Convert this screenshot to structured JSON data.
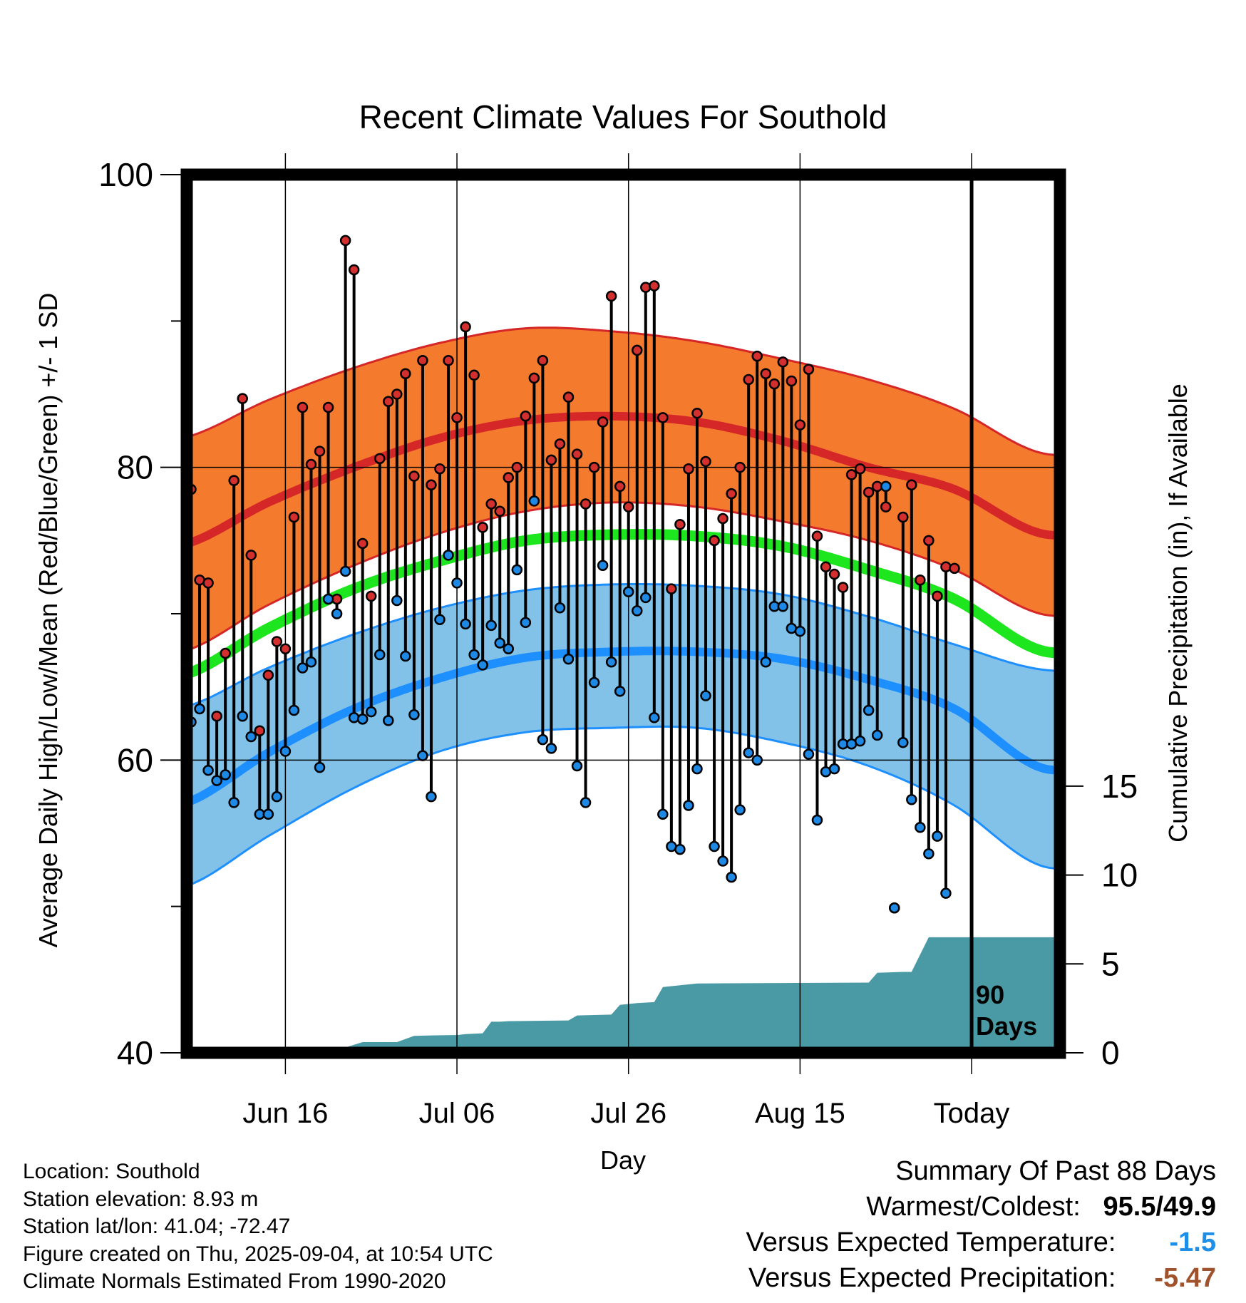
{
  "chart_data": {
    "type": "line",
    "title": "Recent Climate Values For Southold",
    "xlabel": "Day",
    "ylabel_left": "Average Daily High/Low/Mean (Red/Blue/Green) +/- 1 SD",
    "ylabel_right": "Cumulative Precipitation (in), If Available",
    "x_tick_labels": [
      "Jun 16",
      "Jul 06",
      "Jul 26",
      "Aug 15",
      "Today"
    ],
    "x_tick_days": [
      12,
      32,
      52,
      72,
      92
    ],
    "y_left_ticks": [
      40,
      60,
      80,
      100
    ],
    "ylim_left": [
      40,
      100
    ],
    "y_right_ticks": [
      0,
      5,
      10,
      15
    ],
    "ylim_right": [
      0,
      49.4
    ],
    "xlim": [
      0.5,
      102.3
    ],
    "days_label": [
      "90",
      "Days"
    ],
    "normals": {
      "days": [
        0,
        10,
        20,
        30,
        40,
        50,
        60,
        70,
        80,
        90,
        100
      ],
      "high_mean": [
        74.7,
        77.6,
        80.0,
        82.0,
        83.2,
        83.5,
        83.1,
        81.8,
        80.0,
        78.5,
        75.5
      ],
      "high_upper": [
        82.0,
        84.6,
        86.8,
        88.5,
        89.5,
        89.3,
        88.6,
        87.4,
        86.0,
        84.0,
        81.0
      ],
      "high_lower": [
        67.4,
        70.6,
        73.3,
        75.5,
        77.0,
        77.6,
        77.3,
        76.3,
        75.0,
        73.0,
        70.0
      ],
      "mean": [
        65.8,
        69.0,
        71.7,
        73.6,
        75.0,
        75.4,
        75.3,
        74.6,
        73.0,
        71.0,
        67.5
      ],
      "low_mean": [
        57.0,
        60.5,
        63.5,
        65.6,
        67.0,
        67.4,
        67.4,
        66.9,
        65.5,
        63.5,
        59.5
      ],
      "low_upper": [
        63.6,
        66.3,
        68.6,
        70.4,
        71.6,
        72.0,
        71.9,
        71.3,
        69.8,
        67.9,
        66.2
      ],
      "low_lower": [
        51.3,
        54.8,
        58.1,
        60.6,
        61.9,
        62.2,
        62.2,
        61.2,
        59.6,
        56.9,
        52.8
      ]
    },
    "series": [
      {
        "name": "High",
        "color": "#d32f2f",
        "x": [
          1,
          2,
          3,
          4,
          5,
          6,
          7,
          8,
          9,
          10,
          11,
          12,
          13,
          14,
          15,
          16,
          17,
          18,
          19,
          20,
          21,
          22,
          23,
          24,
          25,
          26,
          27,
          28,
          29,
          30,
          31,
          32,
          33,
          34,
          35,
          36,
          37,
          38,
          39,
          40,
          41,
          42,
          43,
          44,
          45,
          46,
          47,
          48,
          49,
          50,
          51,
          52,
          53,
          54,
          55,
          56,
          57,
          58,
          59,
          60,
          61,
          62,
          63,
          64,
          65,
          66,
          67,
          68,
          69,
          70,
          71,
          72,
          73,
          74,
          75,
          76,
          77,
          78,
          79,
          80,
          81,
          82,
          83,
          84,
          85,
          86,
          87,
          88,
          89,
          90,
          91
        ],
        "values": [
          78.5,
          72.3,
          72.1,
          63.0,
          67.3,
          79.1,
          84.7,
          74.0,
          62.0,
          65.8,
          68.1,
          67.6,
          76.6,
          84.1,
          80.2,
          81.1,
          84.1,
          71.0,
          95.5,
          93.5,
          74.8,
          71.2,
          80.6,
          84.5,
          85.0,
          86.4,
          79.4,
          87.3,
          78.8,
          79.9,
          87.3,
          83.4,
          89.6,
          86.3,
          75.9,
          77.5,
          77.0,
          79.3,
          80.0,
          83.5,
          86.1,
          87.3,
          80.5,
          81.6,
          84.8,
          80.9,
          77.5,
          80.0,
          83.1,
          91.7,
          78.7,
          77.3,
          88.0,
          92.3,
          92.4,
          83.4,
          71.7,
          76.1,
          79.9,
          83.7,
          80.4,
          75.0,
          76.5,
          78.2,
          80.0,
          86.0,
          87.6,
          86.4,
          85.7,
          87.2,
          85.9,
          82.9,
          86.7,
          75.3,
          73.2,
          72.7,
          71.8,
          79.5,
          79.9,
          78.3,
          78.7,
          77.3,
          49.9,
          76.6,
          78.8,
          72.3,
          75.0,
          71.2,
          73.2,
          73.1,
          null
        ]
      },
      {
        "name": "Low",
        "color": "#1e88e5",
        "x": [
          1,
          2,
          3,
          4,
          5,
          6,
          7,
          8,
          9,
          10,
          11,
          12,
          13,
          14,
          15,
          16,
          17,
          18,
          19,
          20,
          21,
          22,
          23,
          24,
          25,
          26,
          27,
          28,
          29,
          30,
          31,
          32,
          33,
          34,
          35,
          36,
          37,
          38,
          39,
          40,
          41,
          42,
          43,
          44,
          45,
          46,
          47,
          48,
          49,
          50,
          51,
          52,
          53,
          54,
          55,
          56,
          57,
          58,
          59,
          60,
          61,
          62,
          63,
          64,
          65,
          66,
          67,
          68,
          69,
          70,
          71,
          72,
          73,
          74,
          75,
          76,
          77,
          78,
          79,
          80,
          81,
          82,
          83,
          84,
          85,
          86,
          87,
          88,
          89,
          90,
          91
        ],
        "values": [
          62.6,
          63.5,
          59.3,
          58.6,
          59.0,
          57.1,
          63.0,
          61.6,
          56.3,
          56.3,
          57.5,
          60.6,
          63.4,
          66.3,
          66.7,
          59.5,
          71.0,
          70.0,
          72.9,
          62.9,
          62.8,
          63.3,
          67.2,
          62.7,
          70.9,
          67.1,
          63.1,
          60.3,
          57.5,
          69.6,
          74.0,
          72.1,
          69.3,
          67.2,
          66.5,
          69.2,
          68.0,
          67.6,
          73.0,
          69.4,
          77.7,
          61.4,
          60.8,
          70.4,
          66.9,
          59.6,
          57.1,
          65.3,
          73.3,
          66.7,
          64.7,
          71.5,
          70.2,
          71.1,
          62.9,
          56.3,
          54.1,
          53.9,
          56.9,
          59.4,
          64.4,
          54.1,
          53.1,
          52.0,
          56.6,
          60.5,
          60.0,
          66.7,
          70.5,
          70.5,
          69.0,
          68.8,
          60.4,
          55.9,
          59.2,
          59.4,
          61.1,
          61.1,
          61.3,
          63.4,
          61.7,
          78.7,
          49.9,
          61.2,
          57.3,
          55.4,
          53.6,
          54.8,
          50.9,
          null,
          null
        ]
      }
    ],
    "precipitation": {
      "name": "Cumulative Precipitation",
      "color": "#4a9aa5",
      "days": [
        0,
        7,
        9,
        19,
        21,
        25,
        27,
        29,
        32,
        33,
        35,
        36,
        37,
        38,
        45,
        46,
        50,
        51,
        53,
        55,
        56,
        59,
        60,
        80,
        81,
        84,
        85,
        87,
        90,
        92,
        102.3
      ],
      "values": [
        0.0,
        0.0,
        0.25,
        0.3,
        0.6,
        0.6,
        0.95,
        0.98,
        1.0,
        1.05,
        1.1,
        1.75,
        1.75,
        1.78,
        1.82,
        2.1,
        2.15,
        2.7,
        2.8,
        2.85,
        3.7,
        3.85,
        3.9,
        3.95,
        4.5,
        4.55,
        4.55,
        6.5,
        6.5,
        6.5,
        6.5
      ]
    }
  },
  "info": {
    "location": "Location: Southold",
    "elevation": "Station elevation: 8.93 m",
    "latlon": "Station lat/lon: 41.04; -72.47",
    "created": "Figure created on Thu, 2025-09-04, at 10:54 UTC",
    "normals": "Climate Normals Estimated From 1990-2020"
  },
  "summary": {
    "heading": "Summary Of Past 88 Days",
    "warm_cold_label": "Warmest/Coldest:",
    "warmest": "95.5",
    "separator": "/",
    "coldest": "49.9",
    "temp_label": "Versus Expected Temperature:",
    "temp_value": "-1.5",
    "precip_label": "Versus Expected Precipitation:",
    "precip_value": "-5.47"
  },
  "colors": {
    "high_band": "#f47a2e",
    "high_line": "#d62728",
    "mean_line": "#1ee61e",
    "low_band": "#82c2e8",
    "low_line": "#1e8fff",
    "precip": "#4a9aa5",
    "temp_anomaly": "#1e8fe8",
    "precip_anomaly": "#a0522d"
  }
}
